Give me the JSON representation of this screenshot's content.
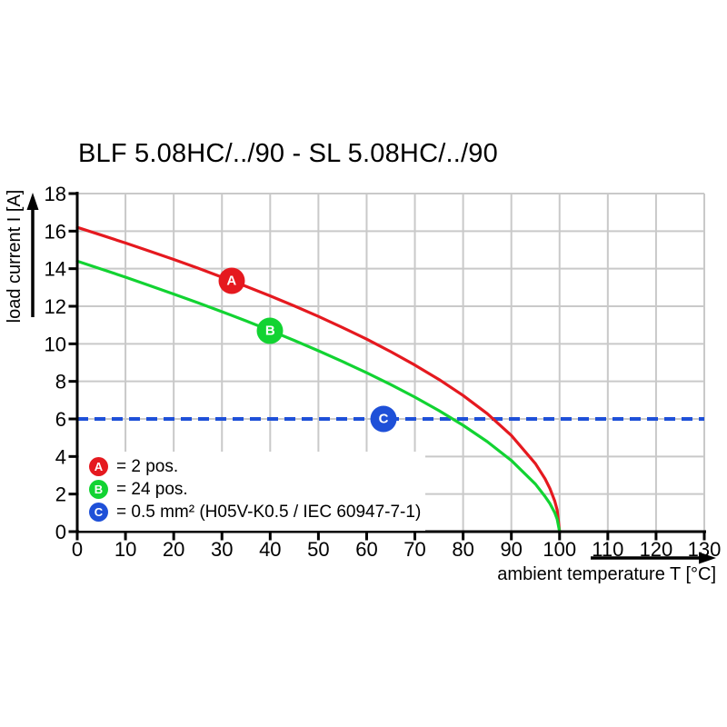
{
  "title": "BLF 5.08HC/../90 - SL 5.08HC/../90",
  "colors": {
    "red": "#e5191f",
    "green": "#12d332",
    "blue": "#1e50d8",
    "grid": "#c9c9c9",
    "axis": "#000000",
    "background": "#ffffff"
  },
  "axis_titles": {
    "x": "ambient temperature T [°C]",
    "y": "load current I [A]"
  },
  "chart_data": {
    "type": "line",
    "title": "BLF 5.08HC/../90 - SL 5.08HC/../90",
    "xlabel": "ambient temperature T [°C]",
    "ylabel": "load current I [A]",
    "xlim": [
      0,
      130
    ],
    "ylim": [
      0,
      18
    ],
    "x_ticks": [
      0,
      10,
      20,
      30,
      40,
      50,
      60,
      70,
      80,
      90,
      100,
      110,
      120,
      130
    ],
    "y_ticks": [
      0,
      2,
      4,
      6,
      8,
      10,
      12,
      14,
      16,
      18
    ],
    "grid": true,
    "legend_position": "inside-bottom-left",
    "series": [
      {
        "name": "A",
        "label": "2 pos.",
        "style": "solid",
        "color_key": "red",
        "points": [
          [
            0,
            16.2
          ],
          [
            5,
            15.79
          ],
          [
            10,
            15.37
          ],
          [
            15,
            14.93
          ],
          [
            20,
            14.49
          ],
          [
            25,
            14.03
          ],
          [
            30,
            13.55
          ],
          [
            35,
            13.06
          ],
          [
            40,
            12.55
          ],
          [
            45,
            12.02
          ],
          [
            50,
            11.46
          ],
          [
            55,
            10.87
          ],
          [
            60,
            10.25
          ],
          [
            65,
            9.58
          ],
          [
            70,
            8.87
          ],
          [
            75,
            8.1
          ],
          [
            80,
            7.25
          ],
          [
            85,
            6.28
          ],
          [
            90,
            5.12
          ],
          [
            95,
            3.62
          ],
          [
            97,
            2.81
          ],
          [
            98,
            2.29
          ],
          [
            99,
            1.62
          ],
          [
            99.5,
            1.15
          ],
          [
            100,
            0
          ]
        ]
      },
      {
        "name": "B",
        "label": "24 pos.",
        "style": "solid",
        "color_key": "green",
        "points": [
          [
            0,
            14.4
          ],
          [
            5,
            13.98
          ],
          [
            10,
            13.55
          ],
          [
            15,
            13.1
          ],
          [
            20,
            12.65
          ],
          [
            25,
            12.19
          ],
          [
            30,
            11.71
          ],
          [
            35,
            11.22
          ],
          [
            40,
            10.71
          ],
          [
            45,
            10.18
          ],
          [
            50,
            9.63
          ],
          [
            55,
            9.06
          ],
          [
            60,
            8.46
          ],
          [
            65,
            7.83
          ],
          [
            70,
            7.16
          ],
          [
            75,
            6.44
          ],
          [
            80,
            5.66
          ],
          [
            85,
            4.79
          ],
          [
            90,
            3.79
          ],
          [
            95,
            2.53
          ],
          [
            97,
            1.87
          ],
          [
            98,
            1.49
          ],
          [
            99,
            1.0
          ],
          [
            99.5,
            0.67
          ],
          [
            100,
            0
          ]
        ]
      },
      {
        "name": "C",
        "label": "0.5 mm² (H05V-K0.5 / IEC 60947-7-1)",
        "style": "dashed-horizontal",
        "color_key": "blue",
        "y": 6
      }
    ],
    "markers": [
      {
        "label": "A",
        "x": 32,
        "y": 13.35,
        "color_key": "red"
      },
      {
        "label": "B",
        "x": 40,
        "y": 10.71,
        "color_key": "green"
      },
      {
        "label": "C",
        "x": 63.5,
        "y": 6,
        "color_key": "blue"
      }
    ]
  },
  "legend": {
    "items": [
      {
        "badge": "A",
        "text": "= 2 pos.",
        "color_key": "red"
      },
      {
        "badge": "B",
        "text": "= 24 pos.",
        "color_key": "green"
      },
      {
        "badge": "C",
        "text": "= 0.5 mm² (H05V-K0.5 / IEC 60947-7-1)",
        "color_key": "blue"
      }
    ]
  }
}
